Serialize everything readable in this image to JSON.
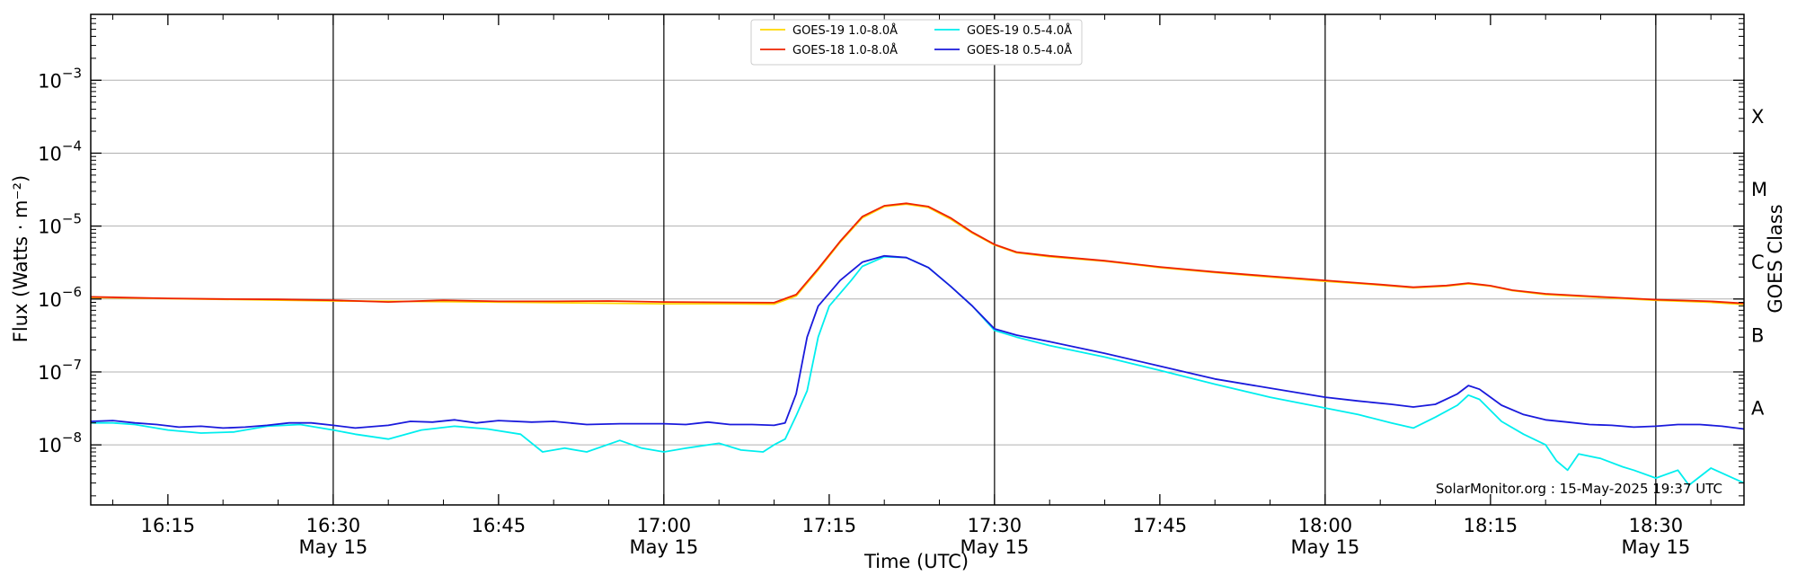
{
  "chart_data": {
    "type": "line",
    "xlabel": "Time (UTC)",
    "ylabel": "Flux (Watts · m⁻²)",
    "ylabel_right": "GOES Class",
    "credit": "SolarMonitor.org : 15-May-2025 19:37 UTC",
    "y_scale": "log",
    "ylim": [
      1.5e-09,
      0.008
    ],
    "xlim": [
      "16:08",
      "18:38"
    ],
    "grid": "horizontal",
    "legend_position": "top-center",
    "y_ticks": [
      {
        "value": 1e-08,
        "base": "10",
        "exp": "−8"
      },
      {
        "value": 1e-07,
        "base": "10",
        "exp": "−7"
      },
      {
        "value": 1e-06,
        "base": "10",
        "exp": "−6"
      },
      {
        "value": 1e-05,
        "base": "10",
        "exp": "−5"
      },
      {
        "value": 0.0001,
        "base": "10",
        "exp": "−4"
      },
      {
        "value": 0.001,
        "base": "10",
        "exp": "−3"
      }
    ],
    "x_ticks": [
      {
        "time": "16:15",
        "label": "16:15",
        "sublabel": "",
        "major": false
      },
      {
        "time": "16:30",
        "label": "16:30",
        "sublabel": "May 15",
        "major": true
      },
      {
        "time": "16:45",
        "label": "16:45",
        "sublabel": "",
        "major": false
      },
      {
        "time": "17:00",
        "label": "17:00",
        "sublabel": "May 15",
        "major": true
      },
      {
        "time": "17:15",
        "label": "17:15",
        "sublabel": "",
        "major": false
      },
      {
        "time": "17:30",
        "label": "17:30",
        "sublabel": "May 15",
        "major": true
      },
      {
        "time": "17:45",
        "label": "17:45",
        "sublabel": "",
        "major": false
      },
      {
        "time": "18:00",
        "label": "18:00",
        "sublabel": "May 15",
        "major": true
      },
      {
        "time": "18:15",
        "label": "18:15",
        "sublabel": "",
        "major": false
      },
      {
        "time": "18:30",
        "label": "18:30",
        "sublabel": "May 15",
        "major": true
      }
    ],
    "goes_classes": [
      {
        "label": "A",
        "value": 3.16e-08
      },
      {
        "label": "B",
        "value": 3.16e-07
      },
      {
        "label": "C",
        "value": 3.16e-06
      },
      {
        "label": "M",
        "value": 3.16e-05
      },
      {
        "label": "X",
        "value": 0.000316
      }
    ],
    "series": [
      {
        "name": "GOES-19 1.0-8.0Å",
        "color": "#ffd700",
        "points": [
          [
            "16:08",
            1.05e-06
          ],
          [
            "16:20",
            9.9e-07
          ],
          [
            "16:30",
            9.4e-07
          ],
          [
            "16:40",
            9.2e-07
          ],
          [
            "16:50",
            8.9e-07
          ],
          [
            "17:00",
            8.6e-07
          ],
          [
            "17:05",
            8.6e-07
          ],
          [
            "17:10",
            8.5e-07
          ],
          [
            "17:12",
            1.1e-06
          ],
          [
            "17:14",
            2.5e-06
          ],
          [
            "17:16",
            6e-06
          ],
          [
            "17:18",
            1.3e-05
          ],
          [
            "17:20",
            1.85e-05
          ],
          [
            "17:22",
            2e-05
          ],
          [
            "17:24",
            1.8e-05
          ],
          [
            "17:26",
            1.25e-05
          ],
          [
            "17:28",
            8e-06
          ],
          [
            "17:30",
            5.5e-06
          ],
          [
            "17:32",
            4.3e-06
          ],
          [
            "17:35",
            3.8e-06
          ],
          [
            "17:40",
            3.3e-06
          ],
          [
            "17:45",
            2.7e-06
          ],
          [
            "17:50",
            2.3e-06
          ],
          [
            "17:55",
            2e-06
          ],
          [
            "18:00",
            1.75e-06
          ],
          [
            "18:05",
            1.55e-06
          ],
          [
            "18:08",
            1.42e-06
          ],
          [
            "18:11",
            1.5e-06
          ],
          [
            "18:13",
            1.62e-06
          ],
          [
            "18:15",
            1.5e-06
          ],
          [
            "18:17",
            1.3e-06
          ],
          [
            "18:20",
            1.15e-06
          ],
          [
            "18:25",
            1.05e-06
          ],
          [
            "18:30",
            9.6e-07
          ],
          [
            "18:35",
            9e-07
          ],
          [
            "18:38",
            8.4e-07
          ]
        ]
      },
      {
        "name": "GOES-18 1.0-8.0Å",
        "color": "#ee2200",
        "points": [
          [
            "16:08",
            1.07e-06
          ],
          [
            "16:15",
            1.02e-06
          ],
          [
            "16:20",
            1e-06
          ],
          [
            "16:25",
            9.9e-07
          ],
          [
            "16:30",
            9.6e-07
          ],
          [
            "16:35",
            9.1e-07
          ],
          [
            "16:40",
            9.6e-07
          ],
          [
            "16:45",
            9.3e-07
          ],
          [
            "16:50",
            9.3e-07
          ],
          [
            "16:55",
            9.4e-07
          ],
          [
            "17:00",
            9.1e-07
          ],
          [
            "17:05",
            9e-07
          ],
          [
            "17:10",
            8.9e-07
          ],
          [
            "17:12",
            1.15e-06
          ],
          [
            "17:14",
            2.6e-06
          ],
          [
            "17:16",
            6.2e-06
          ],
          [
            "17:18",
            1.35e-05
          ],
          [
            "17:20",
            1.9e-05
          ],
          [
            "17:22",
            2.05e-05
          ],
          [
            "17:24",
            1.85e-05
          ],
          [
            "17:26",
            1.3e-05
          ],
          [
            "17:28",
            8.2e-06
          ],
          [
            "17:30",
            5.6e-06
          ],
          [
            "17:32",
            4.4e-06
          ],
          [
            "17:35",
            3.9e-06
          ],
          [
            "17:40",
            3.35e-06
          ],
          [
            "17:45",
            2.75e-06
          ],
          [
            "17:50",
            2.35e-06
          ],
          [
            "17:55",
            2.05e-06
          ],
          [
            "18:00",
            1.8e-06
          ],
          [
            "18:05",
            1.58e-06
          ],
          [
            "18:08",
            1.45e-06
          ],
          [
            "18:11",
            1.53e-06
          ],
          [
            "18:13",
            1.65e-06
          ],
          [
            "18:15",
            1.52e-06
          ],
          [
            "18:17",
            1.32e-06
          ],
          [
            "18:20",
            1.18e-06
          ],
          [
            "18:25",
            1.07e-06
          ],
          [
            "18:30",
            9.8e-07
          ],
          [
            "18:35",
            9.3e-07
          ],
          [
            "18:38",
            8.7e-07
          ]
        ]
      },
      {
        "name": "GOES-19 0.5-4.0Å",
        "color": "#00eeee",
        "points": [
          [
            "16:08",
            2e-08
          ],
          [
            "16:10",
            2e-08
          ],
          [
            "16:12",
            1.9e-08
          ],
          [
            "16:15",
            1.6e-08
          ],
          [
            "16:18",
            1.45e-08
          ],
          [
            "16:21",
            1.5e-08
          ],
          [
            "16:24",
            1.8e-08
          ],
          [
            "16:27",
            1.9e-08
          ],
          [
            "16:30",
            1.6e-08
          ],
          [
            "16:32",
            1.4e-08
          ],
          [
            "16:35",
            1.2e-08
          ],
          [
            "16:38",
            1.6e-08
          ],
          [
            "16:41",
            1.8e-08
          ],
          [
            "16:44",
            1.65e-08
          ],
          [
            "16:47",
            1.4e-08
          ],
          [
            "16:49",
            8e-09
          ],
          [
            "16:51",
            9e-09
          ],
          [
            "16:53",
            8e-09
          ],
          [
            "16:56",
            1.15e-08
          ],
          [
            "16:58",
            9e-09
          ],
          [
            "17:00",
            8e-09
          ],
          [
            "17:02",
            9e-09
          ],
          [
            "17:05",
            1.05e-08
          ],
          [
            "17:07",
            8.5e-09
          ],
          [
            "17:09",
            8e-09
          ],
          [
            "17:10",
            1e-08
          ],
          [
            "17:11",
            1.2e-08
          ],
          [
            "17:12",
            2.5e-08
          ],
          [
            "17:13",
            5.5e-08
          ],
          [
            "17:14",
            3e-07
          ],
          [
            "17:15",
            8e-07
          ],
          [
            "17:17",
            1.8e-06
          ],
          [
            "17:18",
            2.8e-06
          ],
          [
            "17:20",
            3.8e-06
          ],
          [
            "17:22",
            3.7e-06
          ],
          [
            "17:24",
            2.7e-06
          ],
          [
            "17:26",
            1.5e-06
          ],
          [
            "17:28",
            8e-07
          ],
          [
            "17:30",
            3.7e-07
          ],
          [
            "17:32",
            3e-07
          ],
          [
            "17:35",
            2.3e-07
          ],
          [
            "17:40",
            1.6e-07
          ],
          [
            "17:45",
            1.05e-07
          ],
          [
            "17:50",
            6.8e-08
          ],
          [
            "17:55",
            4.5e-08
          ],
          [
            "18:00",
            3.2e-08
          ],
          [
            "18:03",
            2.6e-08
          ],
          [
            "18:06",
            2e-08
          ],
          [
            "18:08",
            1.7e-08
          ],
          [
            "18:10",
            2.4e-08
          ],
          [
            "18:12",
            3.5e-08
          ],
          [
            "18:13",
            4.8e-08
          ],
          [
            "18:14",
            4.2e-08
          ],
          [
            "18:16",
            2.1e-08
          ],
          [
            "18:18",
            1.4e-08
          ],
          [
            "18:20",
            1e-08
          ],
          [
            "18:21",
            6e-09
          ],
          [
            "18:22",
            4.5e-09
          ],
          [
            "18:23",
            7.5e-09
          ],
          [
            "18:25",
            6.5e-09
          ],
          [
            "18:27",
            5e-09
          ],
          [
            "18:28",
            4.5e-09
          ],
          [
            "18:30",
            3.5e-09
          ],
          [
            "18:32",
            4.5e-09
          ],
          [
            "18:33",
            2.8e-09
          ],
          [
            "18:35",
            4.8e-09
          ],
          [
            "18:37",
            3.5e-09
          ],
          [
            "18:38",
            3e-09
          ]
        ]
      },
      {
        "name": "GOES-18 0.5-4.0Å",
        "color": "#1a1adc",
        "points": [
          [
            "16:08",
            2.1e-08
          ],
          [
            "16:10",
            2.15e-08
          ],
          [
            "16:12",
            2e-08
          ],
          [
            "16:14",
            1.9e-08
          ],
          [
            "16:16",
            1.75e-08
          ],
          [
            "16:18",
            1.8e-08
          ],
          [
            "16:20",
            1.7e-08
          ],
          [
            "16:22",
            1.75e-08
          ],
          [
            "16:24",
            1.85e-08
          ],
          [
            "16:26",
            2e-08
          ],
          [
            "16:28",
            2e-08
          ],
          [
            "16:30",
            1.85e-08
          ],
          [
            "16:32",
            1.7e-08
          ],
          [
            "16:35",
            1.85e-08
          ],
          [
            "16:37",
            2.1e-08
          ],
          [
            "16:39",
            2.05e-08
          ],
          [
            "16:41",
            2.2e-08
          ],
          [
            "16:43",
            2e-08
          ],
          [
            "16:45",
            2.15e-08
          ],
          [
            "16:48",
            2.05e-08
          ],
          [
            "16:50",
            2.1e-08
          ],
          [
            "16:53",
            1.9e-08
          ],
          [
            "16:56",
            1.95e-08
          ],
          [
            "17:00",
            1.95e-08
          ],
          [
            "17:02",
            1.9e-08
          ],
          [
            "17:04",
            2.05e-08
          ],
          [
            "17:06",
            1.9e-08
          ],
          [
            "17:08",
            1.9e-08
          ],
          [
            "17:10",
            1.85e-08
          ],
          [
            "17:11",
            2e-08
          ],
          [
            "17:12",
            5e-08
          ],
          [
            "17:13",
            3e-07
          ],
          [
            "17:14",
            8e-07
          ],
          [
            "17:16",
            1.8e-06
          ],
          [
            "17:18",
            3.2e-06
          ],
          [
            "17:20",
            3.9e-06
          ],
          [
            "17:22",
            3.7e-06
          ],
          [
            "17:24",
            2.7e-06
          ],
          [
            "17:26",
            1.5e-06
          ],
          [
            "17:28",
            8e-07
          ],
          [
            "17:30",
            3.9e-07
          ],
          [
            "17:32",
            3.2e-07
          ],
          [
            "17:35",
            2.6e-07
          ],
          [
            "17:40",
            1.8e-07
          ],
          [
            "17:45",
            1.2e-07
          ],
          [
            "17:50",
            8e-08
          ],
          [
            "17:55",
            6e-08
          ],
          [
            "18:00",
            4.5e-08
          ],
          [
            "18:03",
            4e-08
          ],
          [
            "18:06",
            3.6e-08
          ],
          [
            "18:08",
            3.3e-08
          ],
          [
            "18:10",
            3.6e-08
          ],
          [
            "18:12",
            5e-08
          ],
          [
            "18:13",
            6.5e-08
          ],
          [
            "18:14",
            5.8e-08
          ],
          [
            "18:16",
            3.5e-08
          ],
          [
            "18:18",
            2.6e-08
          ],
          [
            "18:20",
            2.2e-08
          ],
          [
            "18:22",
            2.05e-08
          ],
          [
            "18:24",
            1.9e-08
          ],
          [
            "18:26",
            1.85e-08
          ],
          [
            "18:28",
            1.75e-08
          ],
          [
            "18:30",
            1.8e-08
          ],
          [
            "18:32",
            1.9e-08
          ],
          [
            "18:34",
            1.9e-08
          ],
          [
            "18:36",
            1.8e-08
          ],
          [
            "18:38",
            1.65e-08
          ]
        ]
      }
    ],
    "legend_order": [
      0,
      2,
      1,
      3
    ]
  }
}
